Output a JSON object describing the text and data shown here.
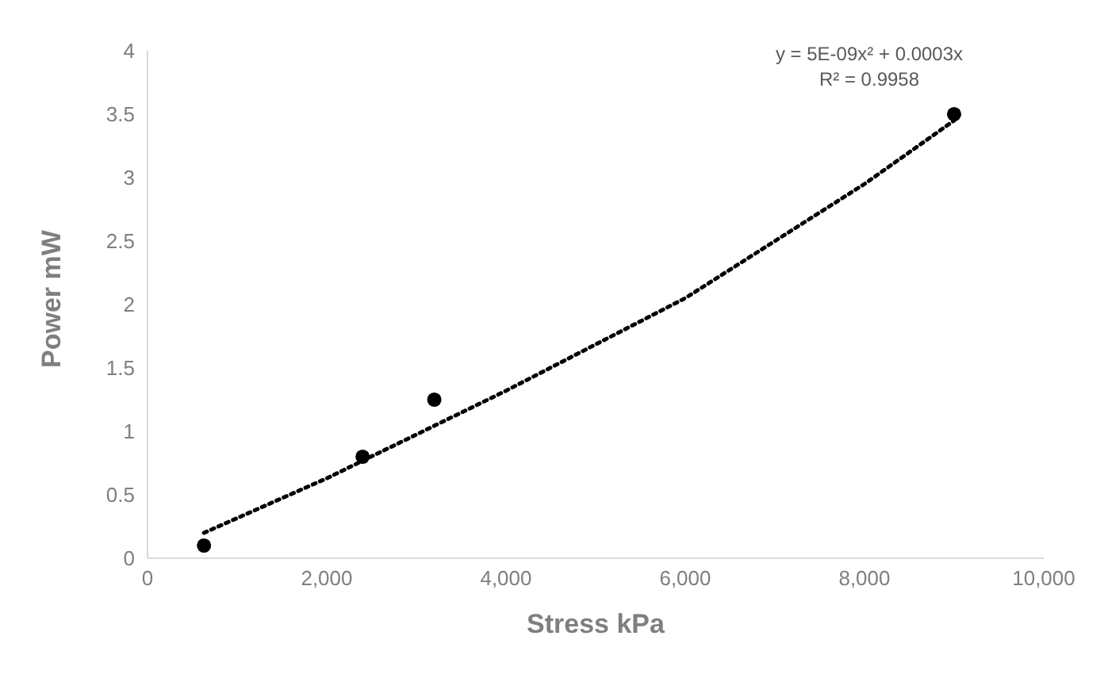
{
  "chart_data": {
    "type": "scatter",
    "xlabel": "Stress kPa",
    "ylabel": "Power mW",
    "xlim": [
      0,
      10000
    ],
    "xticks": [
      {
        "value": 0,
        "label": "0"
      },
      {
        "value": 2000,
        "label": "2,000"
      },
      {
        "value": 4000,
        "label": "4,000"
      },
      {
        "value": 6000,
        "label": "6,000"
      },
      {
        "value": 8000,
        "label": "8,000"
      },
      {
        "value": 10000,
        "label": "10,000"
      }
    ],
    "ylim": [
      0,
      4
    ],
    "yticks": [
      0,
      0.5,
      1,
      1.5,
      2,
      2.5,
      3,
      3.5,
      4
    ],
    "grid": false,
    "legend": false,
    "marker": "circle",
    "series": [
      {
        "color": "#000000",
        "x": [
          630,
          2400,
          3200,
          9000
        ],
        "values": [
          0.1,
          0.8,
          1.25,
          3.5
        ]
      },
      {
        "type": "line",
        "color": "#000000",
        "line_style": "dotted",
        "marker": "none",
        "x": [
          630,
          2000,
          4000,
          6000,
          8000,
          9000
        ],
        "values": [
          0.2,
          0.63,
          1.32,
          2.05,
          2.95,
          3.45
        ]
      }
    ],
    "annotations": [
      "y = 5E-09x² + 0.0003x",
      "R² = 0.9958"
    ]
  }
}
